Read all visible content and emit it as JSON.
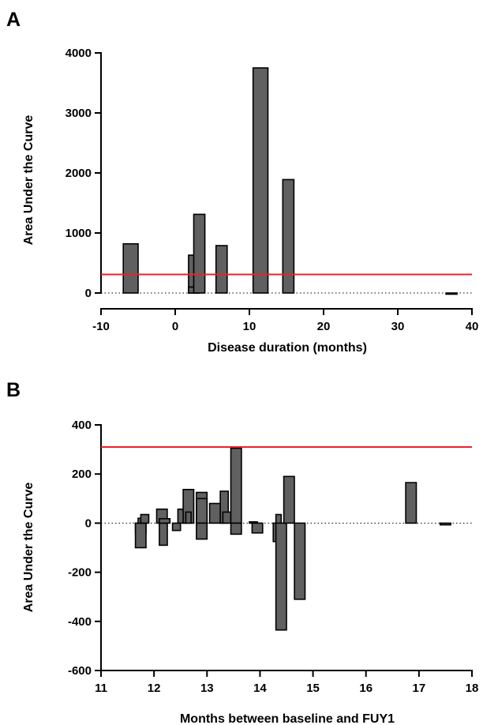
{
  "chart_data": [
    {
      "panel": "A",
      "type": "bar",
      "xlabel": "Disease duration (months)",
      "ylabel": "Area Under the Curve",
      "xlim": [
        -10,
        40
      ],
      "ylim": [
        0,
        4000
      ],
      "x_ticks": [
        -10,
        0,
        10,
        20,
        30,
        40
      ],
      "y_ticks": [
        0,
        1000,
        2000,
        3000,
        4000
      ],
      "x_tick_labels": [
        "-10",
        "0",
        "10",
        "20",
        "30",
        "40"
      ],
      "y_tick_labels": [
        "0",
        "1000",
        "2000",
        "3000",
        "4000"
      ],
      "bar_color": "#606060",
      "bars": [
        {
          "x0": -7.0,
          "x1": -5.0,
          "y": 820
        },
        {
          "x0": 1.8,
          "x1": 3.2,
          "y": 630
        },
        {
          "x0": 1.8,
          "x1": 3.2,
          "y": 100
        },
        {
          "x0": 2.5,
          "x1": 4.0,
          "y": 1310
        },
        {
          "x0": 5.5,
          "x1": 7.0,
          "y": 790
        },
        {
          "x0": 10.5,
          "x1": 12.5,
          "y": 3750
        },
        {
          "x0": 14.5,
          "x1": 16.0,
          "y": 1890
        },
        {
          "x0": 36.5,
          "x1": 38.0,
          "y": -10
        }
      ],
      "threshold": {
        "value": 310,
        "color": "#e8222a"
      },
      "zero_line": {
        "value": 0,
        "style": "dotted"
      }
    },
    {
      "panel": "B",
      "type": "bar",
      "xlabel": "Months between baseline and FUY1",
      "ylabel": "Area Under the Curve",
      "xlim": [
        11,
        18
      ],
      "ylim": [
        -600,
        400
      ],
      "x_ticks": [
        11,
        12,
        13,
        14,
        15,
        16,
        17,
        18
      ],
      "y_ticks": [
        -600,
        -400,
        -200,
        0,
        200,
        400
      ],
      "x_tick_labels": [
        "11",
        "12",
        "13",
        "14",
        "15",
        "16",
        "17",
        "18"
      ],
      "y_tick_labels": [
        "-600",
        "-400",
        "-200",
        "0",
        "200",
        "400"
      ],
      "bar_color": "#606060",
      "bars": [
        {
          "x0": 11.65,
          "x1": 11.85,
          "y": -40
        },
        {
          "x0": 11.65,
          "x1": 11.85,
          "y": -100
        },
        {
          "x0": 11.7,
          "x1": 11.85,
          "y": 20
        },
        {
          "x0": 11.75,
          "x1": 11.9,
          "y": 35
        },
        {
          "x0": 12.05,
          "x1": 12.25,
          "y": 57
        },
        {
          "x0": 12.1,
          "x1": 12.25,
          "y": -90
        },
        {
          "x0": 12.1,
          "x1": 12.3,
          "y": 18
        },
        {
          "x0": 12.35,
          "x1": 12.5,
          "y": -30
        },
        {
          "x0": 12.45,
          "x1": 12.6,
          "y": 57
        },
        {
          "x0": 12.55,
          "x1": 12.75,
          "y": 137
        },
        {
          "x0": 12.6,
          "x1": 12.7,
          "y": 45
        },
        {
          "x0": 12.8,
          "x1": 13.0,
          "y": 125
        },
        {
          "x0": 12.8,
          "x1": 13.0,
          "y": 100
        },
        {
          "x0": 12.8,
          "x1": 13.0,
          "y": -65
        },
        {
          "x0": 13.05,
          "x1": 13.3,
          "y": 80
        },
        {
          "x0": 13.25,
          "x1": 13.4,
          "y": 130
        },
        {
          "x0": 13.3,
          "x1": 13.45,
          "y": 45
        },
        {
          "x0": 13.45,
          "x1": 13.65,
          "y": 305
        },
        {
          "x0": 13.45,
          "x1": 13.65,
          "y": -45
        },
        {
          "x0": 13.8,
          "x1": 13.95,
          "y": 5
        },
        {
          "x0": 13.85,
          "x1": 14.05,
          "y": -40
        },
        {
          "x0": 14.25,
          "x1": 14.45,
          "y": -75
        },
        {
          "x0": 14.3,
          "x1": 14.4,
          "y": 35
        },
        {
          "x0": 14.3,
          "x1": 14.5,
          "y": -435
        },
        {
          "x0": 14.45,
          "x1": 14.65,
          "y": 190
        },
        {
          "x0": 14.65,
          "x1": 14.85,
          "y": -310
        },
        {
          "x0": 16.75,
          "x1": 16.95,
          "y": 165
        },
        {
          "x0": 17.4,
          "x1": 17.6,
          "y": -7
        }
      ],
      "threshold": {
        "value": 310,
        "color": "#e8222a"
      },
      "zero_line": {
        "value": 0,
        "style": "dotted"
      }
    }
  ]
}
